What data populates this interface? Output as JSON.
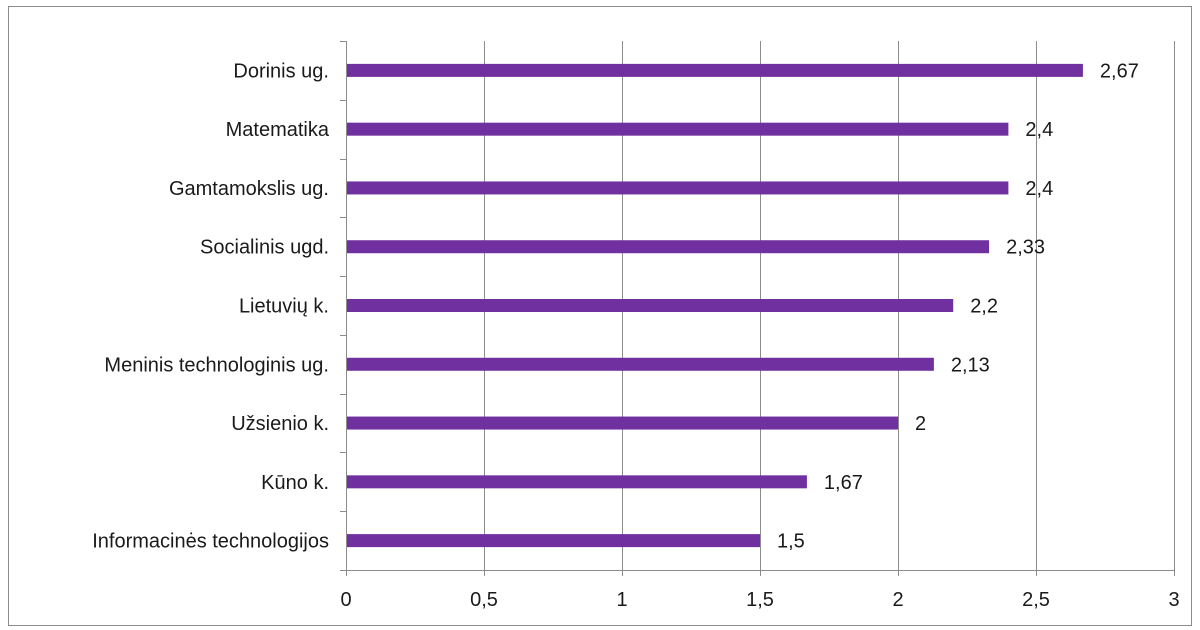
{
  "chart_data": {
    "type": "bar",
    "orientation": "horizontal",
    "categories": [
      "Dorinis ug.",
      "Matematika",
      "Gamtamokslis ug.",
      "Socialinis ugd.",
      "Lietuvių k.",
      "Meninis technologinis ug.",
      "Užsienio k.",
      "Kūno k.",
      "Informacinės technologijos"
    ],
    "values": [
      2.67,
      2.4,
      2.4,
      2.33,
      2.2,
      2.13,
      2,
      1.67,
      1.5
    ],
    "value_labels": [
      "2,67",
      "2,4",
      "2,4",
      "2,33",
      "2,2",
      "2,13",
      "2",
      "1,67",
      "1,5"
    ],
    "x_ticks": [
      0,
      0.5,
      1,
      1.5,
      2,
      2.5,
      3
    ],
    "x_tick_labels": [
      "0",
      "0,5",
      "1",
      "1,5",
      "2",
      "2,5",
      "3"
    ],
    "xlim": [
      0,
      3
    ],
    "title": "",
    "xlabel": "",
    "ylabel": "",
    "grid": true,
    "legend": "none",
    "bar_color": "#7030a0",
    "grid_color": "#8c8c8c"
  }
}
